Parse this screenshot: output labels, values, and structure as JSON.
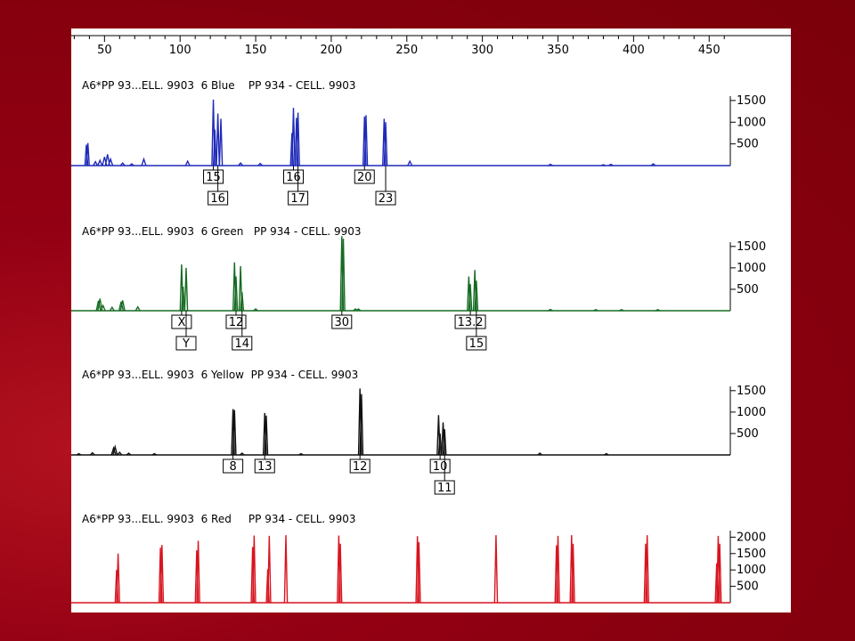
{
  "chart_data": {
    "type": "line",
    "title": "",
    "x_axis": {
      "range": [
        28,
        464
      ],
      "ticks": [
        50,
        100,
        150,
        200,
        250,
        300,
        350,
        400,
        450
      ],
      "tick_labels": [
        "50",
        "100",
        "150",
        "200",
        "250",
        "300",
        "350",
        "400",
        "450"
      ]
    },
    "panels": [
      {
        "label": "A6*PP 93...ELL. 9903  6 Blue    PP 934 - CELL. 9903",
        "color": "#1f2ab8",
        "ylim": [
          0,
          1600
        ],
        "y_ticks": [
          500,
          1000,
          1500
        ],
        "y_tick_labels": [
          "500",
          "1000",
          "1500"
        ],
        "peaks": [
          {
            "x": 38,
            "y": 480
          },
          {
            "x": 39,
            "y": 520
          },
          {
            "x": 44,
            "y": 90
          },
          {
            "x": 47,
            "y": 120
          },
          {
            "x": 50,
            "y": 200
          },
          {
            "x": 52,
            "y": 260
          },
          {
            "x": 54,
            "y": 150
          },
          {
            "x": 62,
            "y": 60
          },
          {
            "x": 68,
            "y": 40
          },
          {
            "x": 76,
            "y": 150
          },
          {
            "x": 105,
            "y": 100
          },
          {
            "x": 122,
            "y": 1520
          },
          {
            "x": 123,
            "y": 830
          },
          {
            "x": 125,
            "y": 1200
          },
          {
            "x": 127,
            "y": 1080
          },
          {
            "x": 140,
            "y": 60
          },
          {
            "x": 153,
            "y": 50
          },
          {
            "x": 174,
            "y": 750
          },
          {
            "x": 175,
            "y": 1330
          },
          {
            "x": 177,
            "y": 1100
          },
          {
            "x": 178,
            "y": 1220
          },
          {
            "x": 222,
            "y": 1130
          },
          {
            "x": 223,
            "y": 1160
          },
          {
            "x": 235,
            "y": 1080
          },
          {
            "x": 236,
            "y": 1000
          },
          {
            "x": 252,
            "y": 100
          },
          {
            "x": 345,
            "y": 30
          },
          {
            "x": 380,
            "y": 20
          },
          {
            "x": 385,
            "y": 30
          },
          {
            "x": 413,
            "y": 40
          }
        ],
        "allele_labels": [
          {
            "text": "15",
            "x": 122,
            "row": 1
          },
          {
            "text": "16",
            "x": 125,
            "row": 2
          },
          {
            "text": "16",
            "x": 175,
            "row": 1
          },
          {
            "text": "17",
            "x": 178,
            "row": 2
          },
          {
            "text": "20",
            "x": 222,
            "row": 1
          },
          {
            "text": "23",
            "x": 236,
            "row": 2
          }
        ]
      },
      {
        "label": "A6*PP 93...ELL. 9903  6 Green   PP 934 - CELL. 9903",
        "color": "#156b22",
        "ylim": [
          0,
          1600
        ],
        "y_ticks": [
          500,
          1000,
          1500
        ],
        "y_tick_labels": [
          "500",
          "1000",
          "1500"
        ],
        "peaks": [
          {
            "x": 46,
            "y": 230
          },
          {
            "x": 47,
            "y": 280
          },
          {
            "x": 49,
            "y": 120
          },
          {
            "x": 55,
            "y": 80
          },
          {
            "x": 61,
            "y": 210
          },
          {
            "x": 62,
            "y": 240
          },
          {
            "x": 72,
            "y": 90
          },
          {
            "x": 101,
            "y": 1080
          },
          {
            "x": 102,
            "y": 560
          },
          {
            "x": 104,
            "y": 1000
          },
          {
            "x": 136,
            "y": 1130
          },
          {
            "x": 137,
            "y": 800
          },
          {
            "x": 140,
            "y": 1040
          },
          {
            "x": 141,
            "y": 430
          },
          {
            "x": 150,
            "y": 40
          },
          {
            "x": 207,
            "y": 1740
          },
          {
            "x": 208,
            "y": 1680
          },
          {
            "x": 216,
            "y": 40
          },
          {
            "x": 218,
            "y": 40
          },
          {
            "x": 291,
            "y": 800
          },
          {
            "x": 292,
            "y": 620
          },
          {
            "x": 295,
            "y": 950
          },
          {
            "x": 296,
            "y": 700
          },
          {
            "x": 345,
            "y": 30
          },
          {
            "x": 375,
            "y": 25
          },
          {
            "x": 392,
            "y": 25
          },
          {
            "x": 416,
            "y": 25
          }
        ],
        "allele_labels": [
          {
            "text": "X",
            "x": 101,
            "row": 1
          },
          {
            "text": "Y",
            "x": 104,
            "row": 2
          },
          {
            "text": "12",
            "x": 137,
            "row": 1
          },
          {
            "text": "14",
            "x": 141,
            "row": 2
          },
          {
            "text": "30",
            "x": 207,
            "row": 1
          },
          {
            "text": "13.2",
            "x": 292,
            "row": 1
          },
          {
            "text": "15",
            "x": 296,
            "row": 2
          }
        ]
      },
      {
        "label": "A6*PP 93...ELL. 9903  6 Yellow  PP 934 - CELL. 9903",
        "color": "#111111",
        "ylim": [
          0,
          1600
        ],
        "y_ticks": [
          500,
          1000,
          1500
        ],
        "y_tick_labels": [
          "500",
          "1000",
          "1500"
        ],
        "peaks": [
          {
            "x": 33,
            "y": 30
          },
          {
            "x": 42,
            "y": 50
          },
          {
            "x": 56,
            "y": 160
          },
          {
            "x": 57,
            "y": 190
          },
          {
            "x": 60,
            "y": 60
          },
          {
            "x": 66,
            "y": 40
          },
          {
            "x": 83,
            "y": 30
          },
          {
            "x": 135,
            "y": 1070
          },
          {
            "x": 136,
            "y": 1050
          },
          {
            "x": 141,
            "y": 40
          },
          {
            "x": 156,
            "y": 980
          },
          {
            "x": 157,
            "y": 920
          },
          {
            "x": 180,
            "y": 30
          },
          {
            "x": 219,
            "y": 1550
          },
          {
            "x": 220,
            "y": 1420
          },
          {
            "x": 271,
            "y": 930
          },
          {
            "x": 272,
            "y": 500
          },
          {
            "x": 274,
            "y": 760
          },
          {
            "x": 275,
            "y": 600
          },
          {
            "x": 338,
            "y": 40
          },
          {
            "x": 382,
            "y": 30
          }
        ],
        "allele_labels": [
          {
            "text": "8",
            "x": 135,
            "row": 1
          },
          {
            "text": "13",
            "x": 156,
            "row": 1
          },
          {
            "text": "12",
            "x": 219,
            "row": 1
          },
          {
            "text": "10",
            "x": 272,
            "row": 1
          },
          {
            "text": "11",
            "x": 275,
            "row": 2
          }
        ]
      },
      {
        "label": "A6*PP 93...ELL. 9903  6 Red     PP 934 - CELL. 9903",
        "color": "#d8141e",
        "ylim": [
          0,
          2200
        ],
        "y_ticks": [
          500,
          1000,
          1500,
          2000
        ],
        "y_tick_labels": [
          "500",
          "1000",
          "1500",
          "2000"
        ],
        "peaks": [
          {
            "x": 58,
            "y": 1000
          },
          {
            "x": 59,
            "y": 1500
          },
          {
            "x": 87,
            "y": 1680
          },
          {
            "x": 88,
            "y": 1760
          },
          {
            "x": 111,
            "y": 1600
          },
          {
            "x": 112,
            "y": 1890
          },
          {
            "x": 148,
            "y": 1700
          },
          {
            "x": 149,
            "y": 2050
          },
          {
            "x": 158,
            "y": 1020
          },
          {
            "x": 159,
            "y": 2040
          },
          {
            "x": 170,
            "y": 2060
          },
          {
            "x": 205,
            "y": 2050
          },
          {
            "x": 206,
            "y": 1800
          },
          {
            "x": 257,
            "y": 2030
          },
          {
            "x": 258,
            "y": 1850
          },
          {
            "x": 309,
            "y": 2060
          },
          {
            "x": 349,
            "y": 1750
          },
          {
            "x": 350,
            "y": 2040
          },
          {
            "x": 359,
            "y": 2060
          },
          {
            "x": 360,
            "y": 1800
          },
          {
            "x": 408,
            "y": 1800
          },
          {
            "x": 409,
            "y": 2060
          },
          {
            "x": 455,
            "y": 1200
          },
          {
            "x": 456,
            "y": 2040
          },
          {
            "x": 457,
            "y": 1800
          }
        ],
        "allele_labels": []
      }
    ]
  }
}
